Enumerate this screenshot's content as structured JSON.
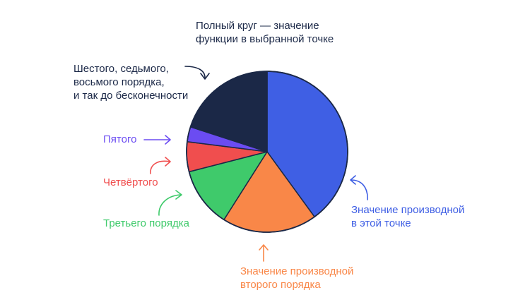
{
  "chart_data": {
    "type": "pie",
    "title": "",
    "slices": [
      {
        "id": "derivative",
        "value": 40,
        "color": "#3f5fe4",
        "label_lines": [
          "Значение производной",
          "в этой точке"
        ]
      },
      {
        "id": "second-order",
        "value": 19,
        "color": "#f98748",
        "label_lines": [
          "Значение производной",
          "второго порядка"
        ]
      },
      {
        "id": "third-order",
        "value": 12,
        "color": "#3fca6b",
        "label_lines": [
          "Третьего порядка"
        ]
      },
      {
        "id": "fourth-order",
        "value": 6,
        "color": "#f04e4e",
        "label_lines": [
          "Четвёртого"
        ]
      },
      {
        "id": "fifth-order",
        "value": 3,
        "color": "#6b4cf2",
        "label_lines": [
          "Пятого"
        ]
      },
      {
        "id": "higher-orders",
        "value": 20,
        "color": "#1b2847",
        "label_lines": [
          "Шестого, седьмого,",
          "восьмого порядка,",
          "и так до бесконечности"
        ]
      }
    ],
    "annotation_lines": [
      "Полный круг — значение",
      "функции в выбранной точке"
    ],
    "outline_color": "#1b2847"
  }
}
